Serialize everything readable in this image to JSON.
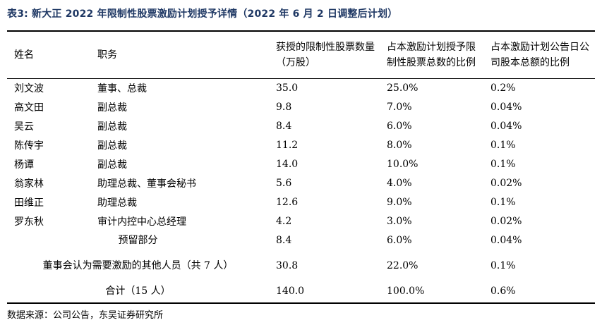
{
  "title": "表3:  新大正 2022 年限制性股票激励计划授予详情（2022 年 6 月 2 日调整后计划）",
  "headers": [
    "姓名",
    "职务",
    "获授的限制性股票数量（万股）",
    "占本激励计划授予限制性股票总数的比例",
    "占本激励计划公告日公司股本总额的比例"
  ],
  "rows": [
    {
      "name": "刘文波",
      "role": "董事、总裁",
      "shares": "35.0",
      "pct_grant": "25.0%",
      "pct_capital": "0.2%"
    },
    {
      "name": "高文田",
      "role": "副总裁",
      "shares": "9.8",
      "pct_grant": "7.0%",
      "pct_capital": "0.04%"
    },
    {
      "name": "吴云",
      "role": "副总裁",
      "shares": "8.4",
      "pct_grant": "6.0%",
      "pct_capital": "0.04%"
    },
    {
      "name": "陈传宇",
      "role": "副总裁",
      "shares": "11.2",
      "pct_grant": "8.0%",
      "pct_capital": "0.1%"
    },
    {
      "name": "杨谭",
      "role": "副总裁",
      "shares": "14.0",
      "pct_grant": "10.0%",
      "pct_capital": "0.1%"
    },
    {
      "name": "翁家林",
      "role": "助理总裁、董事会秘书",
      "shares": "5.6",
      "pct_grant": "4.0%",
      "pct_capital": "0.02%"
    },
    {
      "name": "田维正",
      "role": "助理总裁",
      "shares": "12.6",
      "pct_grant": "9.0%",
      "pct_capital": "0.1%"
    },
    {
      "name": "罗东秋",
      "role": "审计内控中心总经理",
      "shares": "4.2",
      "pct_grant": "3.0%",
      "pct_capital": "0.02%"
    }
  ],
  "merged_rows": [
    {
      "label": "预留部分",
      "shares": "8.4",
      "pct_grant": "6.0%",
      "pct_capital": "0.04%"
    },
    {
      "label": "董事会认为需要激励的其他人员（共 7 人）",
      "shares": "30.8",
      "pct_grant": "22.0%",
      "pct_capital": "0.1%"
    },
    {
      "label": "合计（15 人）",
      "shares": "140.0",
      "pct_grant": "100.0%",
      "pct_capital": "0.6%"
    }
  ],
  "source": "数据来源：公司公告，东吴证券研究所"
}
